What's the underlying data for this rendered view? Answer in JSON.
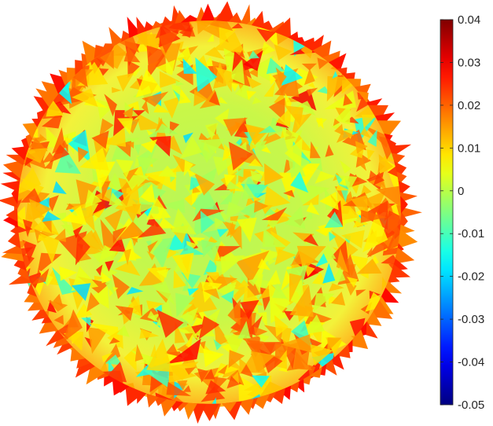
{
  "chart_data": {
    "type": "heatmap",
    "description_shape": "disc",
    "colormap": "jet",
    "title": "",
    "xlabel": "",
    "ylabel": "",
    "colorbar": {
      "limits": [
        -0.05,
        0.04
      ],
      "ticks": [
        0.04,
        0.03,
        0.02,
        0.01,
        0,
        -0.01,
        -0.02,
        -0.03,
        -0.04,
        -0.05
      ],
      "tick_labels": [
        "0.04",
        "0.03",
        "0.02",
        "0.01",
        "0",
        "-0.01",
        "-0.02",
        "-0.03",
        "-0.04",
        "-0.05"
      ],
      "placement": "right"
    },
    "typical_value_range": [
      -0.02,
      0.02
    ],
    "dominant_value": 0.005,
    "edge_value": 0.02
  }
}
